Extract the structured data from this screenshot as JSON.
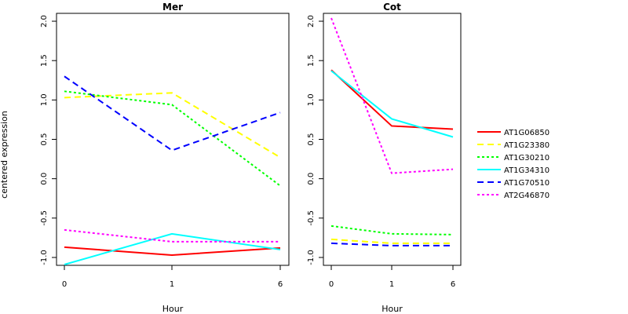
{
  "ylabel": "centered expression",
  "xlabel": "Hour",
  "chart_data": [
    {
      "type": "line",
      "title": "Mer",
      "x": [
        "0",
        "1",
        "6"
      ],
      "ylim": [
        -1.1,
        2.1
      ],
      "yticks": [
        "-1.0",
        "-0.5",
        "0.0",
        "0.5",
        "1.0",
        "1.5",
        "2.0"
      ],
      "xlabel": "Hour",
      "ylabel": "centered expression",
      "series": [
        {
          "name": "AT1G06850",
          "values": [
            -0.87,
            -0.97,
            -0.88
          ]
        },
        {
          "name": "AT1G23380",
          "values": [
            1.03,
            1.09,
            0.27
          ]
        },
        {
          "name": "AT1G30210",
          "values": [
            1.11,
            0.94,
            -0.09
          ]
        },
        {
          "name": "AT1G34310",
          "values": [
            -1.09,
            -0.7,
            -0.9
          ]
        },
        {
          "name": "AT1G70510",
          "values": [
            1.3,
            0.36,
            0.84
          ]
        },
        {
          "name": "AT2G46870",
          "values": [
            -0.65,
            -0.8,
            -0.8
          ]
        }
      ]
    },
    {
      "type": "line",
      "title": "Cot",
      "x": [
        "0",
        "1",
        "6"
      ],
      "ylim": [
        -1.1,
        2.1
      ],
      "yticks": [
        "-1.0",
        "-0.5",
        "0.0",
        "0.5",
        "1.0",
        "1.5",
        "2.0"
      ],
      "xlabel": "Hour",
      "series": [
        {
          "name": "AT1G06850",
          "values": [
            1.38,
            0.67,
            0.63
          ]
        },
        {
          "name": "AT1G23380",
          "values": [
            -0.77,
            -0.82,
            -0.82
          ]
        },
        {
          "name": "AT1G30210",
          "values": [
            -0.6,
            -0.7,
            -0.71
          ]
        },
        {
          "name": "AT1G34310",
          "values": [
            1.37,
            0.76,
            0.53
          ]
        },
        {
          "name": "AT1G70510",
          "values": [
            -0.82,
            -0.85,
            -0.85
          ]
        },
        {
          "name": "AT2G46870",
          "values": [
            2.04,
            0.07,
            0.12
          ]
        }
      ]
    }
  ],
  "legend": {
    "placement": "right",
    "entries": [
      {
        "name": "AT1G06850",
        "color": "#ff0000",
        "dash": "solid"
      },
      {
        "name": "AT1G23380",
        "color": "#ffff00",
        "dash": "dashed"
      },
      {
        "name": "AT1G30210",
        "color": "#00ff00",
        "dash": "dotted"
      },
      {
        "name": "AT1G34310",
        "color": "#00ffff",
        "dash": "solid"
      },
      {
        "name": "AT1G70510",
        "color": "#0000ff",
        "dash": "dashed"
      },
      {
        "name": "AT2G46870",
        "color": "#ff00ff",
        "dash": "dotted"
      }
    ]
  }
}
